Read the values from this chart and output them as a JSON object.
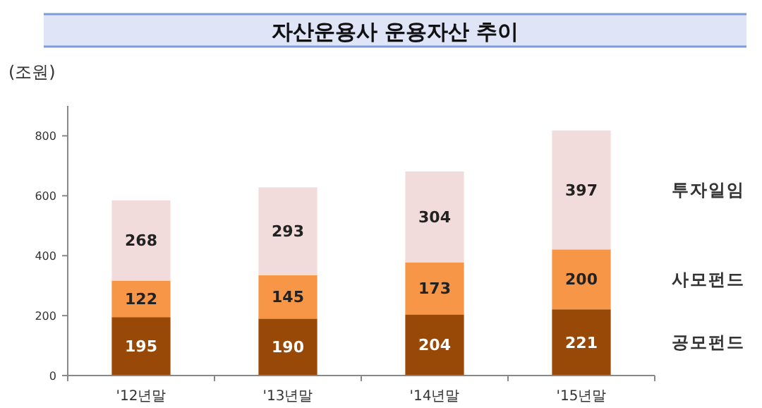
{
  "chart_data": {
    "type": "bar",
    "title": "자산운용사 운용자산 추이",
    "ylabel": "(조원)",
    "categories": [
      "'12년말",
      "'13년말",
      "'14년말",
      "'15년말"
    ],
    "stacked": true,
    "data_labels": true,
    "legend": "right",
    "grid": false,
    "ylim": [
      0,
      900
    ],
    "yticks": [
      0,
      200,
      400,
      600,
      800
    ],
    "series": [
      {
        "name": "공모펀드",
        "color": "#984807",
        "values": [
          195,
          190,
          204,
          221
        ]
      },
      {
        "name": "사모펀드",
        "color": "#f79646",
        "values": [
          122,
          145,
          173,
          200
        ]
      },
      {
        "name": "투자일임",
        "color": "#f2dcdb",
        "values": [
          268,
          293,
          304,
          397
        ]
      }
    ]
  }
}
